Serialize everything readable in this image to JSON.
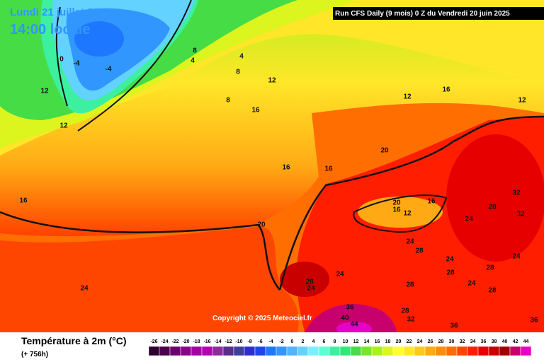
{
  "header": {
    "date": "Lundi 21 juillet 2025",
    "time": "14:00 locale",
    "run": "Run CFS Daily (9 mois) 0 Z du Vendredi 20 juin 2025",
    "copyright": "Copyright © 2025 Meteociel.fr"
  },
  "legend": {
    "title": "Température à 2m (°C)",
    "lead": "(+ 756h)",
    "ticks": [
      -26,
      -24,
      -22,
      -20,
      -18,
      -16,
      -14,
      -12,
      -10,
      -8,
      -6,
      -4,
      -2,
      0,
      2,
      4,
      6,
      8,
      10,
      12,
      14,
      16,
      18,
      20,
      22,
      24,
      26,
      28,
      30,
      32,
      34,
      36,
      38,
      40,
      42,
      44
    ],
    "colors": [
      "#2d002d",
      "#4d004d",
      "#6e006e",
      "#8c008c",
      "#a400a4",
      "#b400b4",
      "#8a2c9b",
      "#5a2c8c",
      "#3e3e9e",
      "#2d2dcd",
      "#1e46e6",
      "#1e78ff",
      "#3296ff",
      "#50b4ff",
      "#64d2ff",
      "#78f0ff",
      "#5affd2",
      "#3cf0a0",
      "#32e678",
      "#46dc46",
      "#78e628",
      "#aaf01e",
      "#dcf51e",
      "#ffff32",
      "#ffe628",
      "#ffc81e",
      "#ffaa14",
      "#ff8c0a",
      "#ff6e00",
      "#ff4600",
      "#ff1e00",
      "#e60000",
      "#c80000",
      "#a00000",
      "#c8006e",
      "#e600c8"
    ]
  },
  "map": {
    "contour_labels": [
      "-4",
      "-4",
      "0",
      "8",
      "4",
      "4",
      "8",
      "12",
      "12",
      "12",
      "8",
      "16",
      "12",
      "16",
      "12",
      "20",
      "16",
      "16",
      "16",
      "20",
      "20",
      "16",
      "12",
      "16",
      "32",
      "28",
      "32",
      "24",
      "24",
      "28",
      "24",
      "24",
      "24",
      "28",
      "24",
      "28",
      "28",
      "24",
      "28",
      "24",
      "28",
      "36",
      "28",
      "40",
      "32",
      "44",
      "36",
      "36"
    ]
  }
}
